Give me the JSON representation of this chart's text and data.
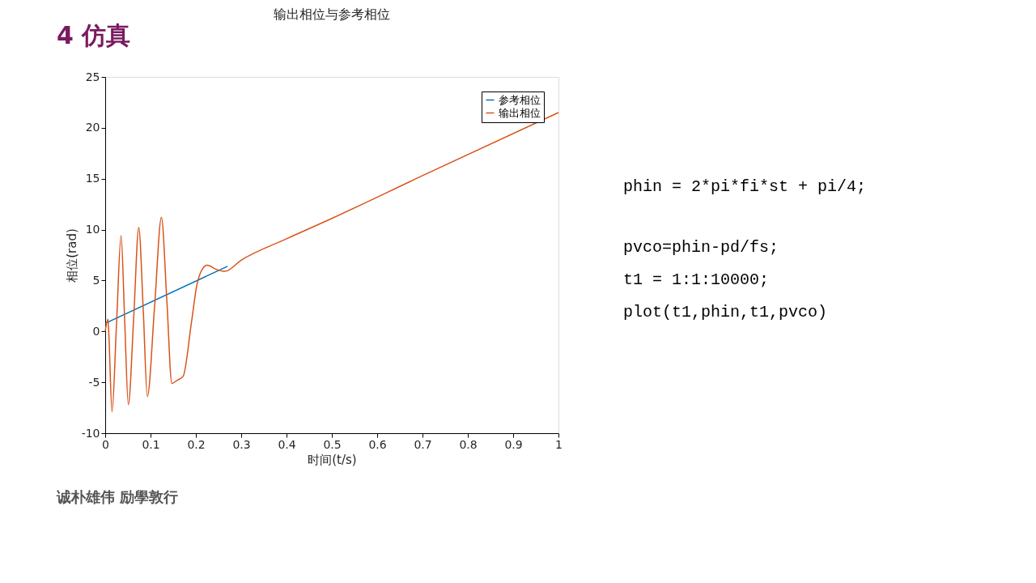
{
  "chart_data": {
    "type": "line",
    "title": "输出相位与参考相位",
    "xlabel": "时间(t/s)",
    "ylabel": "相位(rad)",
    "annotations": [
      "4 仿真",
      "phin = 2*pi*fi*st + pi/4;",
      "pvco=phin-pd/fs;",
      "t1 = 1:1:10000;",
      "plot(t1,phin,t1,pvco)",
      "诚朴雄伟   励學敦行"
    ],
    "series": [
      {
        "name": "参考相位",
        "color": "#0072bd",
        "x": [
          0,
          0.27
        ],
        "values": [
          0.79,
          6.4
        ]
      },
      {
        "name": "输出相位",
        "color": "#d95319",
        "x": [
          0,
          0.006,
          0.008,
          0.015,
          0.025,
          0.035,
          0.043,
          0.051,
          0.063,
          0.074,
          0.084,
          0.093,
          0.109,
          0.124,
          0.136,
          0.147,
          0.159,
          0.172,
          0.19,
          0.202,
          0.214,
          0.225,
          0.245,
          0.264,
          0.3,
          0.4,
          0.5,
          0.7,
          1
        ],
        "values": [
          0,
          1.2,
          -0.3,
          -7.9,
          0.8,
          9.4,
          1,
          -7.2,
          1.5,
          10.2,
          2,
          -6.4,
          2.5,
          11.2,
          3,
          -5.1,
          -4.8,
          -4.4,
          0.8,
          4.5,
          6.1,
          6.5,
          6.1,
          5.9,
          7.0,
          9.1,
          11.1,
          15.3,
          21.5
        ]
      }
    ],
    "xlim": [
      0,
      1
    ],
    "ylim": [
      -10,
      25
    ],
    "xticks": [
      0,
      0.1,
      0.2,
      0.3,
      0.4,
      0.5,
      0.6,
      0.7,
      0.8,
      0.9,
      1
    ],
    "yticks": [
      -10,
      -5,
      0,
      5,
      10,
      15,
      20,
      25
    ],
    "grid": false,
    "legend": "top right",
    "line_style": "solid",
    "marker": "none"
  }
}
